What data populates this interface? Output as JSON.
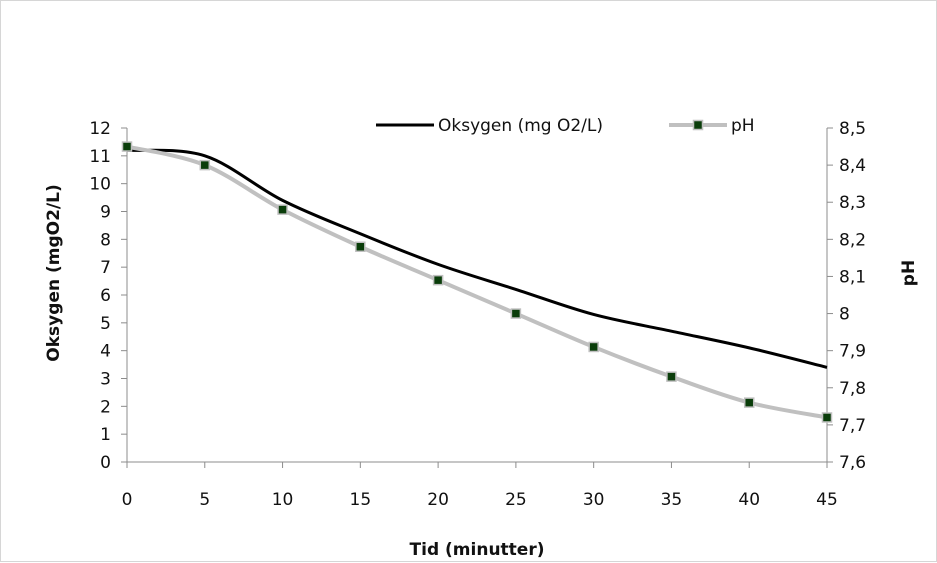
{
  "chart_data": {
    "type": "line",
    "x": [
      0,
      5,
      10,
      15,
      20,
      25,
      30,
      35,
      40,
      45
    ],
    "xlabel": "Tid (minutter)",
    "ylabel": "Oksygen (mgO2/L)",
    "y2label": "pH",
    "xlim": [
      0,
      45
    ],
    "ylim": [
      0,
      12
    ],
    "y2lim": [
      7.6,
      8.5
    ],
    "x_ticks": [
      "0",
      "5",
      "10",
      "15",
      "20",
      "25",
      "30",
      "35",
      "40",
      "45"
    ],
    "y_ticks": [
      "0",
      "1",
      "2",
      "3",
      "4",
      "5",
      "6",
      "7",
      "8",
      "9",
      "10",
      "11",
      "12"
    ],
    "y2_ticks": [
      "7,6",
      "7,7",
      "7,8",
      "7,9",
      "8",
      "8,1",
      "8,2",
      "8,3",
      "8,4",
      "8,5"
    ],
    "grid": false,
    "legend_position": "top-right",
    "series": [
      {
        "name": "Oksygen (mg O2/L)",
        "axis": "left",
        "color": "#000000",
        "marker": "none",
        "values": [
          11.2,
          11.0,
          9.4,
          8.2,
          7.1,
          6.2,
          5.3,
          4.7,
          4.1,
          3.4
        ]
      },
      {
        "name": "pH",
        "axis": "right",
        "color": "#c0c0c0",
        "marker": "square",
        "marker_color": "#0a3d0a",
        "values": [
          8.45,
          8.4,
          8.28,
          8.18,
          8.09,
          8.0,
          7.91,
          7.83,
          7.76,
          7.72
        ]
      }
    ]
  }
}
